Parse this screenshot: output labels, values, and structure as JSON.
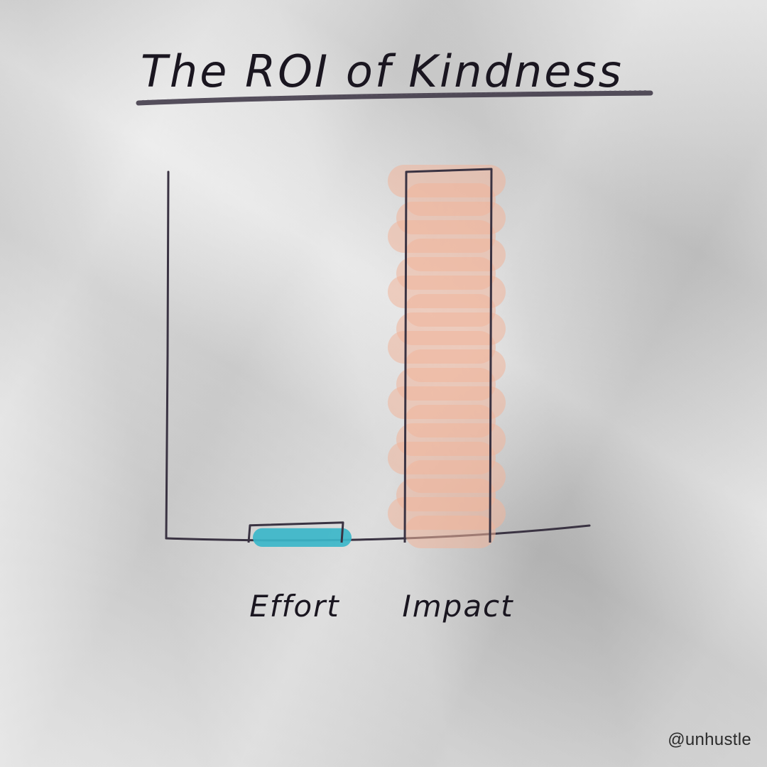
{
  "chart_data": {
    "type": "bar",
    "title": "The ROI of Kindness",
    "categories": [
      "Effort",
      "Impact"
    ],
    "values": [
      5,
      100
    ],
    "ylim": [
      0,
      100
    ],
    "xlabel": "",
    "ylabel": "",
    "grid": false,
    "colors": {
      "Effort": "#3bb6c9",
      "Impact": "#f0b49a",
      "ink": "#3a3342"
    }
  },
  "footer": {
    "handle": "@unhustle"
  }
}
